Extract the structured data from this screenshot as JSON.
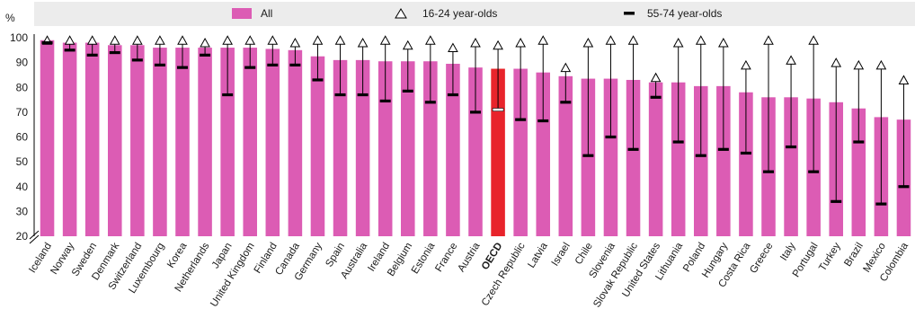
{
  "chart_data": {
    "type": "bar",
    "unit_label": "%",
    "ylim": [
      20,
      100
    ],
    "yticks": [
      20,
      30,
      40,
      50,
      60,
      70,
      80,
      90,
      100
    ],
    "grid": true,
    "legend_position": "top",
    "categories": [
      "Iceland",
      "Norway",
      "Sweden",
      "Denmark",
      "Switzerland",
      "Luxembourg",
      "Korea",
      "Netherlands",
      "Japan",
      "United Kingdom",
      "Finland",
      "Canada",
      "Germany",
      "Spain",
      "Australia",
      "Ireland",
      "Belgium",
      "Estonia",
      "France",
      "Austria",
      "OECD",
      "Czech Republic",
      "Latvia",
      "Israel",
      "Chile",
      "Slovenia",
      "Slovak Republic",
      "United States",
      "Lithuania",
      "Poland",
      "Hungary",
      "Costa Rica",
      "Greece",
      "Italy",
      "Portugal",
      "Turkey",
      "Brazil",
      "Mexico",
      "Colombia"
    ],
    "highlight_category": "OECD",
    "series": [
      {
        "name": "All",
        "marker": "bar",
        "values": [
          99,
          98,
          98,
          97,
          97,
          96,
          96,
          96,
          96,
          96,
          95.5,
          95,
          92.5,
          91,
          91,
          90.5,
          90.5,
          90.5,
          89.5,
          88,
          87.5,
          87.5,
          86,
          84.5,
          83.5,
          83.5,
          83,
          82,
          82,
          80.5,
          80.5,
          78,
          76,
          76,
          75.5,
          74,
          71.5,
          68,
          67
        ]
      },
      {
        "name": "16-24 year-olds",
        "marker": "triangle",
        "values": [
          99,
          99,
          99,
          99,
          99,
          99,
          99,
          98,
          99,
          99,
          99,
          98,
          99,
          99,
          98,
          99,
          97,
          99,
          96,
          98,
          97,
          98,
          99,
          88,
          98,
          99,
          99,
          84,
          98,
          99,
          98,
          89,
          99,
          91,
          99,
          90,
          89,
          89,
          83
        ]
      },
      {
        "name": "55-74 year-olds",
        "marker": "dash",
        "values": [
          98,
          95,
          93,
          94,
          91,
          89,
          88,
          93,
          77,
          88,
          89,
          89,
          83,
          77,
          77,
          74.5,
          78.5,
          74,
          77,
          70,
          71,
          67,
          66.5,
          74,
          52.5,
          60,
          55,
          76,
          58,
          52.5,
          55,
          53.5,
          46,
          56,
          46,
          34,
          58,
          33,
          40
        ]
      }
    ],
    "colors": {
      "bar": "#dc5cb4",
      "highlight_bar": "#e8242b",
      "stroke": "#000000",
      "background": "#ffffff",
      "grid": "#ffffff",
      "legend_band": "#ececec"
    }
  }
}
